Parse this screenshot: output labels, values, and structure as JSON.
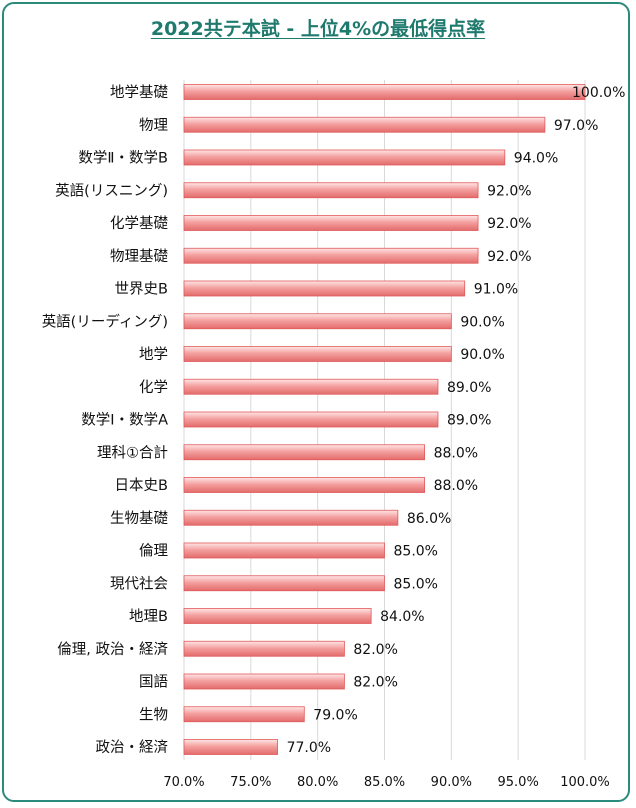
{
  "chart_data": {
    "type": "bar",
    "orientation": "horizontal",
    "title": "2022共テ本試 - 上位4%の最低得点率",
    "categories": [
      "地学基礎",
      "物理",
      "数学Ⅱ・数学B",
      "英語(リスニング)",
      "化学基礎",
      "物理基礎",
      "世界史B",
      "英語(リーディング)",
      "地学",
      "化学",
      "数学Ⅰ・数学A",
      "理科①合計",
      "日本史B",
      "生物基礎",
      "倫理",
      "現代社会",
      "地理B",
      "倫理, 政治・経済",
      "国語",
      "生物",
      "政治・経済"
    ],
    "values": [
      100.0,
      97.0,
      94.0,
      92.0,
      92.0,
      92.0,
      91.0,
      90.0,
      90.0,
      89.0,
      89.0,
      88.0,
      88.0,
      86.0,
      85.0,
      85.0,
      84.0,
      82.0,
      82.0,
      79.0,
      77.0
    ],
    "value_labels": [
      "100.0%",
      "97.0%",
      "94.0%",
      "92.0%",
      "92.0%",
      "92.0%",
      "91.0%",
      "90.0%",
      "90.0%",
      "89.0%",
      "89.0%",
      "88.0%",
      "88.0%",
      "86.0%",
      "85.0%",
      "85.0%",
      "84.0%",
      "82.0%",
      "82.0%",
      "79.0%",
      "77.0%"
    ],
    "xlim": [
      70,
      100
    ],
    "xticks": [
      70,
      75,
      80,
      85,
      90,
      95,
      100
    ],
    "xtick_labels": [
      "70.0%",
      "75.0%",
      "80.0%",
      "85.0%",
      "90.0%",
      "95.0%",
      "100.0%"
    ],
    "grid": "vertical",
    "colors": {
      "bar": "#f4a0a0",
      "bar_edge": "#e05a5a",
      "grid": "#d9d9d9",
      "frame": "#2a8a7c",
      "title": "#1f7a6e"
    }
  }
}
